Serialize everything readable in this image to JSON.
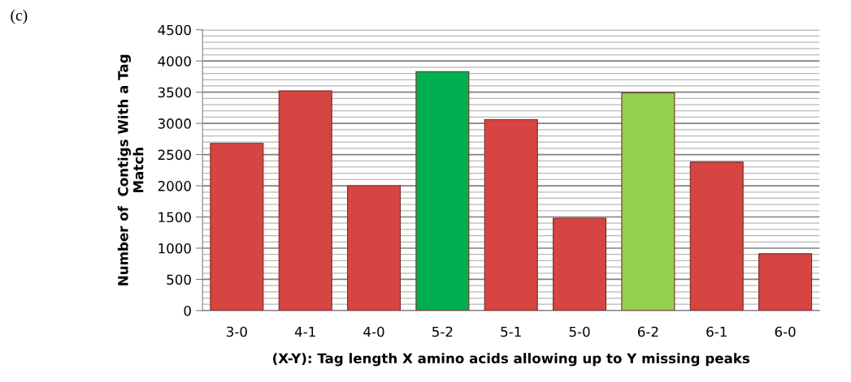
{
  "chart_data": {
    "type": "bar",
    "categories": [
      "3-0",
      "4-1",
      "4-0",
      "5-2",
      "5-1",
      "5-0",
      "6-2",
      "6-1",
      "6-0"
    ],
    "values": [
      2680,
      3520,
      2000,
      3830,
      3060,
      1480,
      3490,
      2380,
      910
    ],
    "colors": [
      "#d64541",
      "#d64541",
      "#d64541",
      "#00b050",
      "#d64541",
      "#d64541",
      "#92d050",
      "#d64541",
      "#d64541"
    ],
    "xlabel": "(X-Y): Tag length X amino acids allowing up to Y missing peaks",
    "ylabel": "Number of  Contigs With a Tag\nMatch",
    "ylim": [
      0,
      4500
    ],
    "yticks": [
      0,
      500,
      1000,
      1500,
      2000,
      2500,
      3000,
      3500,
      4000,
      4500
    ],
    "grid": "y",
    "annotations": [
      "(c)"
    ]
  }
}
